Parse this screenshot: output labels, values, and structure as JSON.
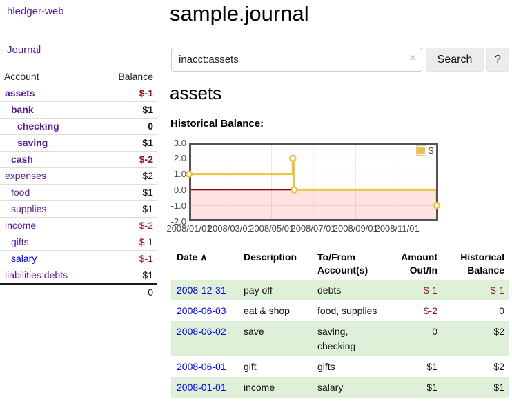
{
  "app": {
    "brand": "hledger-web"
  },
  "sidebar": {
    "nav": [
      {
        "label": "Journal"
      }
    ],
    "accounts_header": {
      "account": "Account",
      "balance": "Balance"
    },
    "accounts": [
      {
        "name": "assets",
        "balance": "$-1",
        "depth": 0,
        "bold": true,
        "negative": true,
        "link_style": "visited"
      },
      {
        "name": "bank",
        "balance": "$1",
        "depth": 1,
        "bold": true,
        "negative": false,
        "link_style": "visited"
      },
      {
        "name": "checking",
        "balance": "0",
        "depth": 2,
        "bold": true,
        "negative": false,
        "link_style": "visited"
      },
      {
        "name": "saving",
        "balance": "$1",
        "depth": 2,
        "bold": true,
        "negative": false,
        "link_style": "visited"
      },
      {
        "name": "cash",
        "balance": "$-2",
        "depth": 1,
        "bold": true,
        "negative": true,
        "link_style": "visited"
      },
      {
        "name": "expenses",
        "balance": "$2",
        "depth": 0,
        "bold": false,
        "negative": false,
        "link_style": "visited"
      },
      {
        "name": "food",
        "balance": "$1",
        "depth": 1,
        "bold": false,
        "negative": false,
        "link_style": "visited"
      },
      {
        "name": "supplies",
        "balance": "$1",
        "depth": 1,
        "bold": false,
        "negative": false,
        "link_style": "visited"
      },
      {
        "name": "income",
        "balance": "$-2",
        "depth": 0,
        "bold": false,
        "negative": true,
        "link_style": "visited"
      },
      {
        "name": "gifts",
        "balance": "$-1",
        "depth": 1,
        "bold": false,
        "negative": true,
        "link_style": "visited"
      },
      {
        "name": "salary",
        "balance": "$-1",
        "depth": 1,
        "bold": false,
        "negative": true,
        "link_style": "unvisited"
      },
      {
        "name": "liabilities:debts",
        "balance": "$1",
        "depth": 0,
        "bold": false,
        "negative": false,
        "link_style": "visited"
      }
    ],
    "total": {
      "balance": "0"
    }
  },
  "header": {
    "title": "sample.journal"
  },
  "search": {
    "value": "inacct:assets",
    "clear_icon": "×",
    "button": "Search",
    "help_button": "?"
  },
  "account_page": {
    "title": "assets",
    "chart_label": "Historical Balance:"
  },
  "chart_data": {
    "type": "line",
    "step": true,
    "title": "Historical Balance:",
    "series": [
      {
        "name": "$",
        "color": "#edc240",
        "points": [
          {
            "x": "2008-01-01",
            "day": 1,
            "y": 1
          },
          {
            "x": "2008-06-01",
            "day": 153,
            "y": 2
          },
          {
            "x": "2008-06-03",
            "day": 155,
            "y": 0
          },
          {
            "x": "2008-12-31",
            "day": 366,
            "y": -1
          }
        ]
      }
    ],
    "x_ticks": [
      {
        "label": "2008/01/01",
        "day": 1
      },
      {
        "label": "2008/03/01",
        "day": 61
      },
      {
        "label": "2008/05/01",
        "day": 122
      },
      {
        "label": "2008/07/01",
        "day": 183
      },
      {
        "label": "2008/09/01",
        "day": 245
      },
      {
        "label": "2008/11/01",
        "day": 306
      }
    ],
    "y_ticks": [
      "3.0",
      "2.0",
      "1.0",
      "0.0",
      "-1.0",
      "-2.0"
    ],
    "ylim": [
      -2,
      3
    ],
    "x_range_days": [
      1,
      366
    ],
    "legend": {
      "label": "$",
      "position": "top-right"
    },
    "grid": true,
    "negative_region": true,
    "colors": {
      "line": "#edc240",
      "zero_line": "#8b0000",
      "negative_fill": "rgba(255,0,0,0.11)",
      "border": "#545454",
      "gridline": "#e4e4e4"
    }
  },
  "register": {
    "columns": {
      "date": "Date",
      "sort_arrow": "∧",
      "description": "Description",
      "accounts": "To/From Account(s)",
      "amount": "Amount Out/In",
      "balance": "Historical Balance"
    },
    "rows": [
      {
        "date": "2008-12-31",
        "description": "pay off",
        "accounts": "debts",
        "amount": "$-1",
        "amount_negative": true,
        "balance": "$-1",
        "balance_negative": true
      },
      {
        "date": "2008-06-03",
        "description": "eat & shop",
        "accounts": "food, supplies",
        "amount": "$-2",
        "amount_negative": true,
        "balance": "0",
        "balance_negative": false
      },
      {
        "date": "2008-06-02",
        "description": "save",
        "accounts": "saving, checking",
        "amount": "0",
        "amount_negative": false,
        "balance": "$2",
        "balance_negative": false
      },
      {
        "date": "2008-06-01",
        "description": "gift",
        "accounts": "gifts",
        "amount": "$1",
        "amount_negative": false,
        "balance": "$2",
        "balance_negative": false
      },
      {
        "date": "2008-01-01",
        "description": "income",
        "accounts": "salary",
        "amount": "$1",
        "amount_negative": false,
        "balance": "$1",
        "balance_negative": false
      }
    ]
  },
  "colors": {
    "link_visited_purple": "#551a8b",
    "link_blue": "#0000e6",
    "negative_red": "#8e1919",
    "row_stripe_green": "#dff0d8",
    "sidebar_divider": "#cccccc"
  }
}
